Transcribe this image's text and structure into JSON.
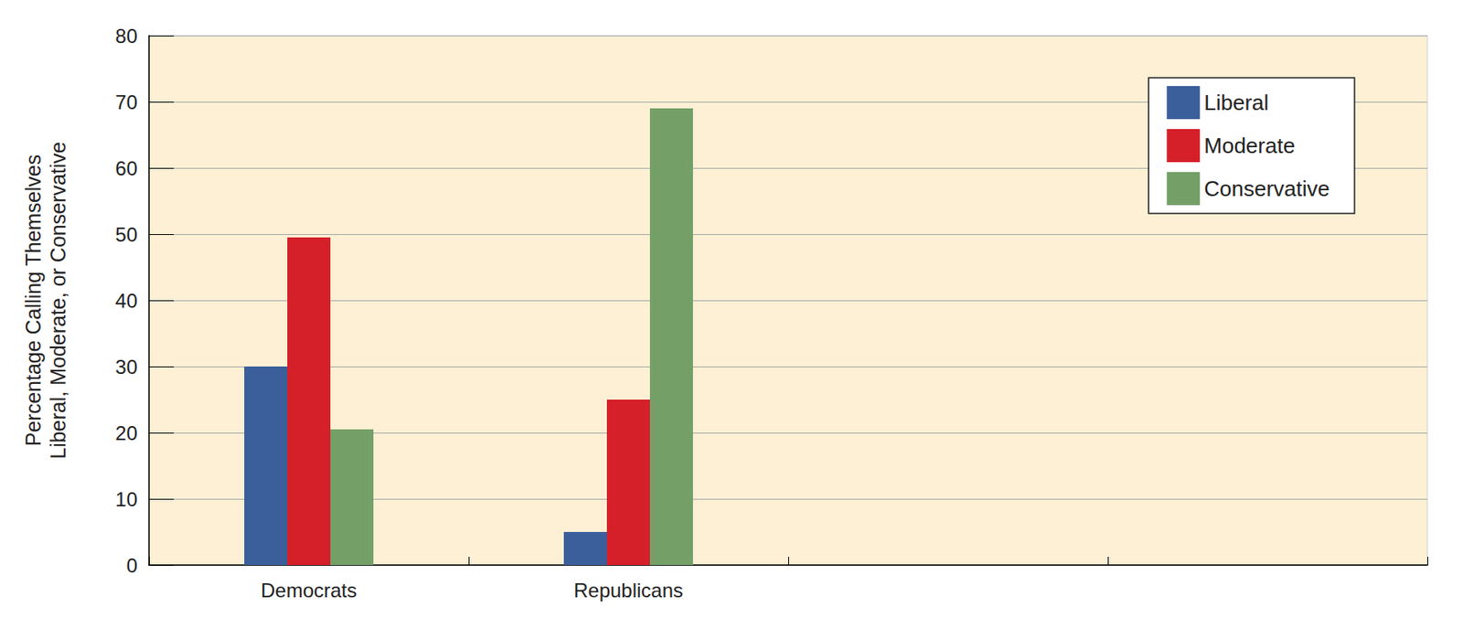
{
  "chart_data": {
    "type": "bar",
    "y_label": "Percentage Calling Themselves\nLiberal, Moderate, or Conservative",
    "categories": [
      "Democrats",
      "Republicans",
      null,
      null
    ],
    "series": [
      {
        "name": "Liberal",
        "color": "#3b5f9b",
        "values": [
          30,
          5,
          null,
          null
        ]
      },
      {
        "name": "Moderate",
        "color": "#d5202a",
        "values": [
          49.5,
          25,
          null,
          null
        ]
      },
      {
        "name": "Conservative",
        "color": "#74a067",
        "values": [
          20.5,
          69,
          null,
          null
        ]
      }
    ],
    "ylim": [
      0,
      80
    ],
    "yticks": [
      0,
      10,
      20,
      30,
      40,
      50,
      60,
      70,
      80
    ],
    "grid": true,
    "legend": "top-right"
  }
}
